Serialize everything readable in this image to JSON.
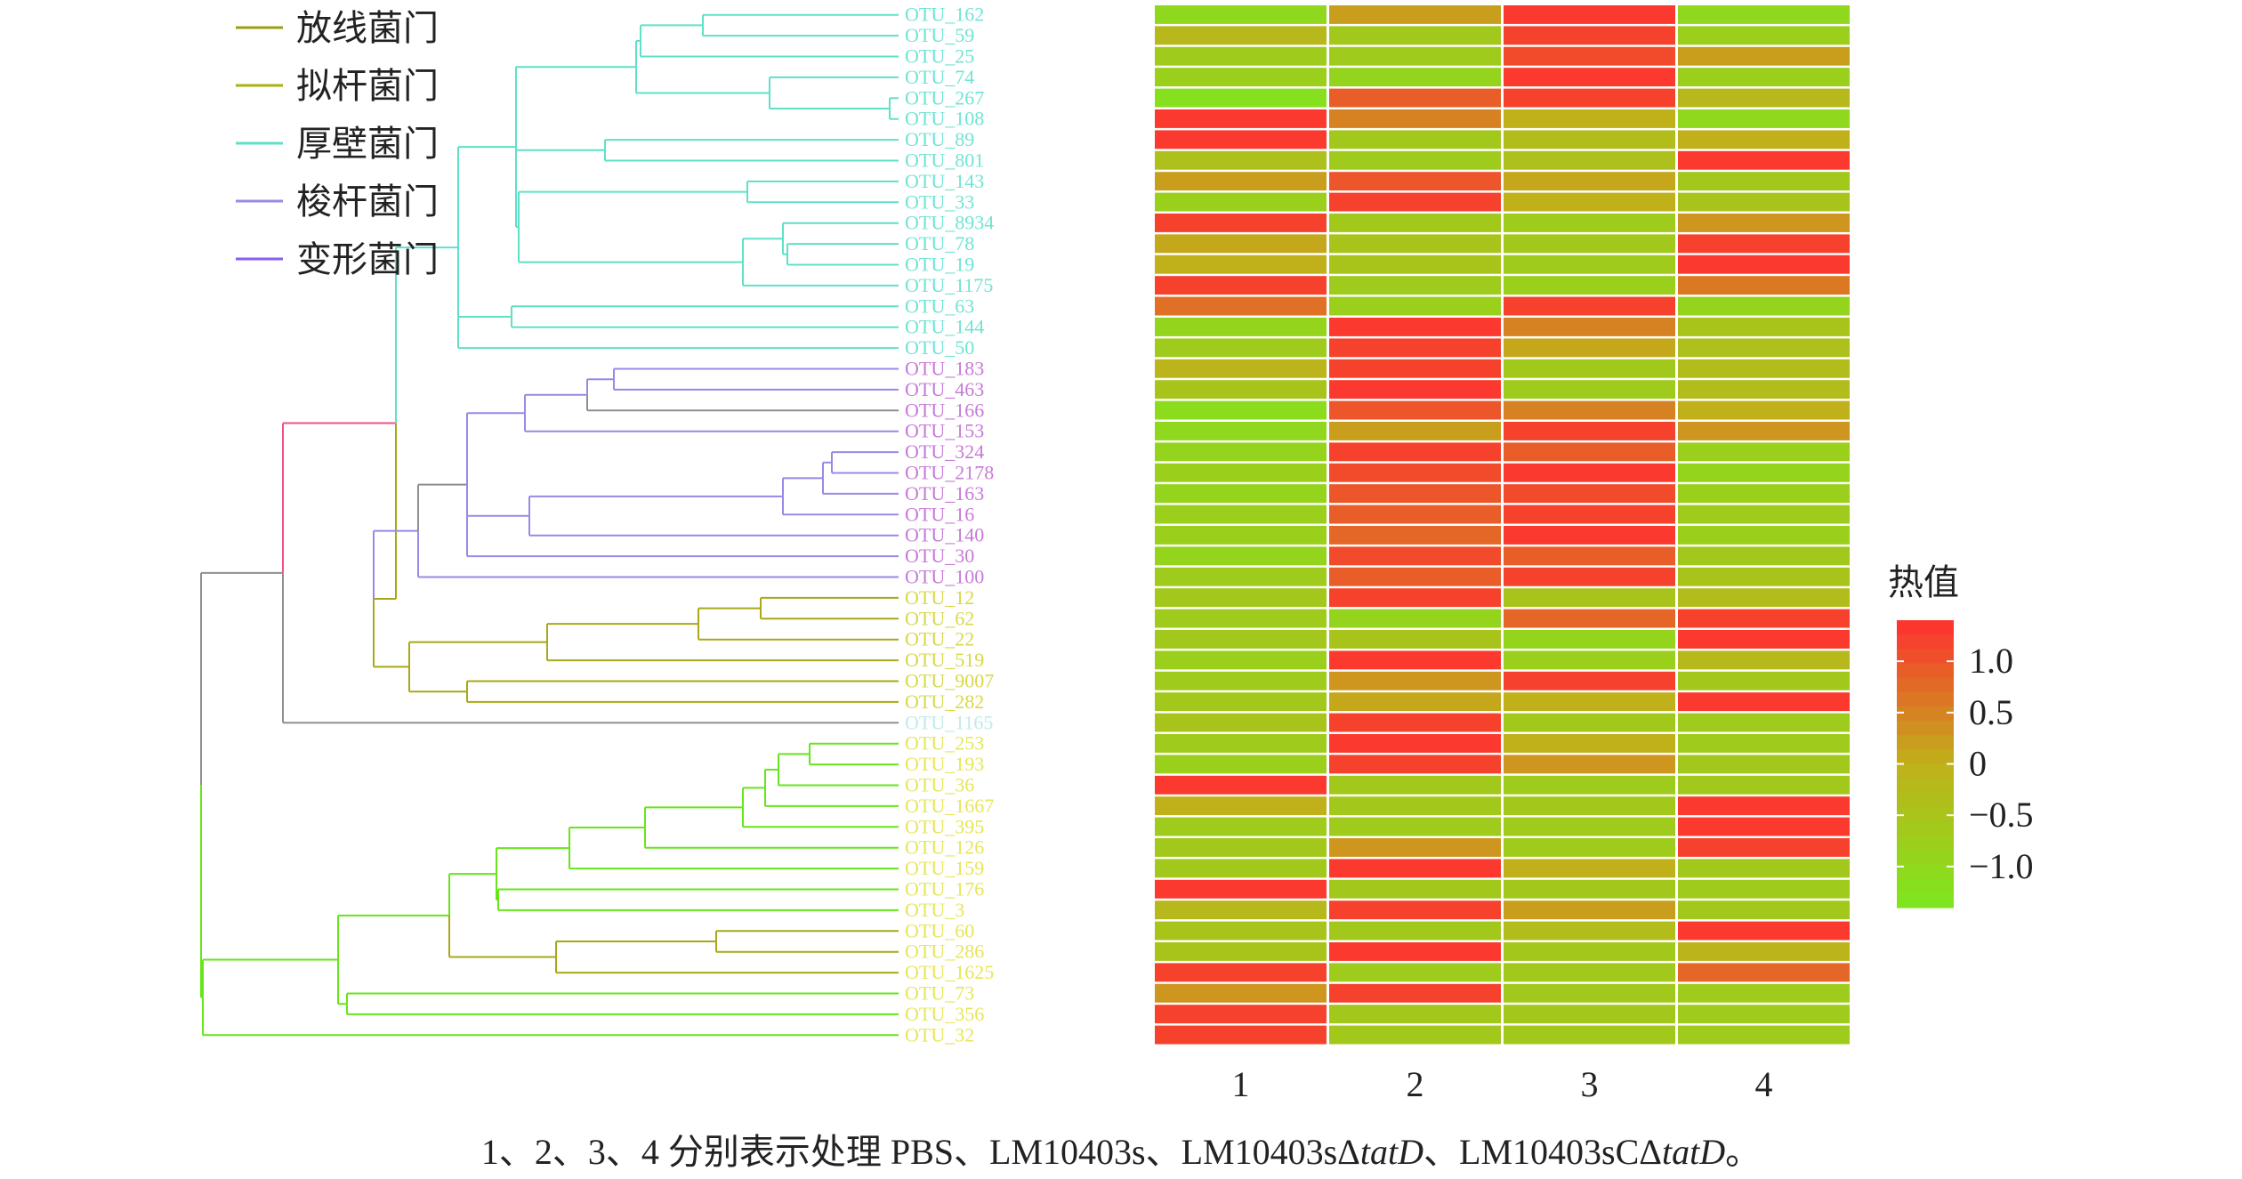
{
  "chart_data": {
    "type": "heatmap",
    "legend": {
      "phyla": [
        {
          "name": "放线菌门",
          "color": "#9e9e12"
        },
        {
          "name": "拟杆菌门",
          "color": "#aab20e"
        },
        {
          "name": "厚壁菌门",
          "color": "#5fe0c8"
        },
        {
          "name": "梭杆菌门",
          "color": "#9a88e6"
        },
        {
          "name": "变形菌门",
          "color": "#8a5ef2"
        }
      ]
    },
    "colorbar": {
      "title": "热值",
      "ticks": [
        "1.0",
        "0.5",
        "0",
        "−0.5",
        "−1.0"
      ],
      "tick_values": [
        1.0,
        0.5,
        0,
        -0.5,
        -1.0
      ],
      "range": [
        -1.4,
        1.4
      ],
      "colors": [
        "#7de81e",
        "#c0b01a",
        "#ff3030"
      ]
    },
    "columns": [
      "1",
      "2",
      "3",
      "4"
    ],
    "rows": [
      {
        "label": "OTU_162",
        "color": "#6fe4d4",
        "values": [
          -1.0,
          0.2,
          1.3,
          -1.0
        ]
      },
      {
        "label": "OTU_59",
        "color": "#6fe4d4",
        "values": [
          -0.2,
          -0.6,
          1.2,
          -0.8
        ]
      },
      {
        "label": "OTU_25",
        "color": "#6fe4d4",
        "values": [
          -0.7,
          -0.7,
          1.1,
          0.2
        ]
      },
      {
        "label": "OTU_74",
        "color": "#6fe4d4",
        "values": [
          -0.8,
          -0.9,
          1.3,
          -0.8
        ]
      },
      {
        "label": "OTU_267",
        "color": "#6fe4d4",
        "values": [
          -1.2,
          0.9,
          1.2,
          -0.2
        ]
      },
      {
        "label": "OTU_108",
        "color": "#6fe4d4",
        "values": [
          1.3,
          0.5,
          0.0,
          -1.0
        ]
      },
      {
        "label": "OTU_89",
        "color": "#6fe4d4",
        "values": [
          1.3,
          -0.6,
          -0.3,
          0.0
        ]
      },
      {
        "label": "OTU_801",
        "color": "#6fe4d4",
        "values": [
          -0.4,
          -0.7,
          -0.4,
          1.3
        ]
      },
      {
        "label": "OTU_143",
        "color": "#6fe4d4",
        "values": [
          0.2,
          1.0,
          0.1,
          -0.6
        ]
      },
      {
        "label": "OTU_33",
        "color": "#6fe4d4",
        "values": [
          -0.8,
          1.2,
          0.0,
          -0.5
        ]
      },
      {
        "label": "OTU_8934",
        "color": "#6fe4d4",
        "values": [
          1.2,
          -0.6,
          -0.7,
          0.3
        ]
      },
      {
        "label": "OTU_78",
        "color": "#6fe4d4",
        "values": [
          0.1,
          -0.5,
          -0.6,
          1.2
        ]
      },
      {
        "label": "OTU_19",
        "color": "#6fe4d4",
        "values": [
          0.0,
          -0.5,
          -0.7,
          1.3
        ]
      },
      {
        "label": "OTU_1175",
        "color": "#6fe4d4",
        "values": [
          1.2,
          -0.7,
          -0.8,
          0.6
        ]
      },
      {
        "label": "OTU_63",
        "color": "#6fe4d4",
        "values": [
          0.7,
          -0.8,
          1.2,
          -0.9
        ]
      },
      {
        "label": "OTU_144",
        "color": "#6fe4d4",
        "values": [
          -0.9,
          1.3,
          0.5,
          -0.5
        ]
      },
      {
        "label": "OTU_50",
        "color": "#6fe4d4",
        "values": [
          -0.7,
          1.2,
          0.1,
          -0.4
        ]
      },
      {
        "label": "OTU_183",
        "color": "#c77ad8",
        "values": [
          -0.1,
          1.2,
          -0.6,
          -0.3
        ]
      },
      {
        "label": "OTU_463",
        "color": "#c77ad8",
        "values": [
          -0.5,
          1.3,
          -0.7,
          -0.3
        ]
      },
      {
        "label": "OTU_166",
        "color": "#c77ad8",
        "values": [
          -1.1,
          1.0,
          0.5,
          0.0
        ]
      },
      {
        "label": "OTU_153",
        "color": "#c77ad8",
        "values": [
          -1.0,
          0.2,
          1.2,
          0.3
        ]
      },
      {
        "label": "OTU_324",
        "color": "#c77ad8",
        "values": [
          -0.9,
          1.2,
          0.9,
          -0.8
        ]
      },
      {
        "label": "OTU_2178",
        "color": "#c77ad8",
        "values": [
          -0.8,
          1.1,
          1.3,
          -0.9
        ]
      },
      {
        "label": "OTU_163",
        "color": "#c77ad8",
        "values": [
          -0.9,
          1.0,
          1.1,
          -0.8
        ]
      },
      {
        "label": "OTU_16",
        "color": "#c77ad8",
        "values": [
          -0.8,
          0.9,
          1.2,
          -0.7
        ]
      },
      {
        "label": "OTU_140",
        "color": "#c77ad8",
        "values": [
          -0.8,
          0.8,
          1.3,
          -0.8
        ]
      },
      {
        "label": "OTU_30",
        "color": "#c77ad8",
        "values": [
          -0.9,
          1.1,
          0.9,
          -0.6
        ]
      },
      {
        "label": "OTU_100",
        "color": "#c77ad8",
        "values": [
          -0.7,
          0.9,
          1.2,
          -0.5
        ]
      },
      {
        "label": "OTU_12",
        "color": "#d8d84a",
        "values": [
          -0.6,
          1.2,
          -0.5,
          -0.3
        ]
      },
      {
        "label": "OTU_62",
        "color": "#d8d84a",
        "values": [
          -0.7,
          -0.9,
          0.8,
          1.2
        ]
      },
      {
        "label": "OTU_22",
        "color": "#d8d84a",
        "values": [
          -0.6,
          -0.5,
          -0.9,
          1.3
        ]
      },
      {
        "label": "OTU_519",
        "color": "#d8d84a",
        "values": [
          -0.8,
          1.3,
          -0.8,
          -0.2
        ]
      },
      {
        "label": "OTU_9007",
        "color": "#d8d84a",
        "values": [
          -0.7,
          0.3,
          1.2,
          -0.6
        ]
      },
      {
        "label": "OTU_282",
        "color": "#d8d84a",
        "values": [
          -0.6,
          0.1,
          0.0,
          1.3
        ]
      },
      {
        "label": "OTU_1165",
        "color": "#bfeaea",
        "values": [
          -0.5,
          1.2,
          -0.6,
          -0.7
        ]
      },
      {
        "label": "OTU_253",
        "color": "#e6e65a",
        "values": [
          -0.7,
          1.3,
          0.0,
          -0.7
        ]
      },
      {
        "label": "OTU_193",
        "color": "#e6e65a",
        "values": [
          -0.8,
          1.2,
          0.3,
          -0.6
        ]
      },
      {
        "label": "OTU_36",
        "color": "#e6e65a",
        "values": [
          1.3,
          -0.6,
          -0.7,
          -0.6
        ]
      },
      {
        "label": "OTU_1667",
        "color": "#e6e65a",
        "values": [
          0.0,
          -0.6,
          -0.6,
          1.3
        ]
      },
      {
        "label": "OTU_395",
        "color": "#e6e65a",
        "values": [
          -0.7,
          -0.7,
          -0.7,
          1.3
        ]
      },
      {
        "label": "OTU_126",
        "color": "#e6e65a",
        "values": [
          -0.6,
          0.3,
          -0.7,
          1.2
        ]
      },
      {
        "label": "OTU_159",
        "color": "#e6e65a",
        "values": [
          -0.6,
          1.3,
          0.0,
          -0.6
        ]
      },
      {
        "label": "OTU_176",
        "color": "#e6e65a",
        "values": [
          1.3,
          -0.6,
          -0.6,
          -0.7
        ]
      },
      {
        "label": "OTU_3",
        "color": "#e6e65a",
        "values": [
          -0.2,
          1.2,
          0.2,
          -0.6
        ]
      },
      {
        "label": "OTU_60",
        "color": "#e6e65a",
        "values": [
          -0.5,
          -0.6,
          -0.3,
          1.3
        ]
      },
      {
        "label": "OTU_286",
        "color": "#e6e65a",
        "values": [
          -0.5,
          1.3,
          -0.6,
          -0.1
        ]
      },
      {
        "label": "OTU_1625",
        "color": "#e6e65a",
        "values": [
          1.2,
          -0.7,
          -0.6,
          0.8
        ]
      },
      {
        "label": "OTU_73",
        "color": "#e6e65a",
        "values": [
          0.3,
          1.2,
          -0.6,
          -0.7
        ]
      },
      {
        "label": "OTU_356",
        "color": "#e6e65a",
        "values": [
          1.2,
          -0.6,
          -0.6,
          -0.7
        ]
      },
      {
        "label": "OTU_32",
        "color": "#e6e65a",
        "values": [
          1.2,
          -0.6,
          -0.6,
          -0.7
        ]
      }
    ],
    "caption": {
      "parts": [
        "1、2、3、4 分别表示处理 PBS、LM10403s、LM10403sΔ",
        "tatD",
        "、LM10403sCΔ",
        "tatD",
        "。"
      ]
    }
  }
}
